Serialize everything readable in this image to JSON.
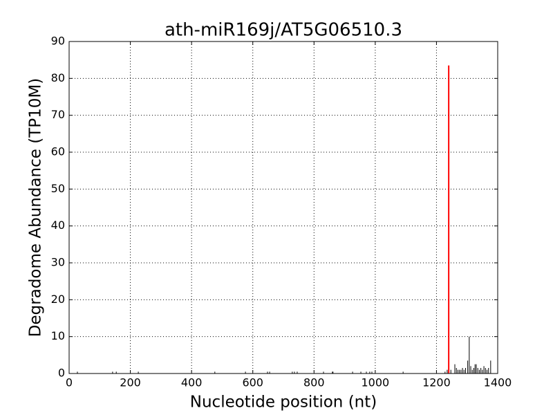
{
  "chart_data": {
    "type": "stem",
    "title": "ath-miR169j/AT5G06510.3",
    "x_label": "Nucleotide position (nt)",
    "y_label": "Degradome Abundance (TP10M)",
    "xlim": [
      0,
      1400
    ],
    "xticks": [
      0,
      200,
      400,
      600,
      800,
      1000,
      1200,
      1400
    ],
    "ylim": [
      0,
      90
    ],
    "yticks": [
      0,
      10,
      20,
      30,
      40,
      50,
      60,
      70,
      80,
      90
    ],
    "grid": true,
    "series": [
      {
        "color": "#000000",
        "x": [
          27,
          142,
          154,
          226,
          476,
          576,
          648,
          655,
          729,
          736,
          745,
          831,
          860,
          862,
          926,
          953,
          971,
          982,
          989,
          1091,
          1228,
          1235,
          1247,
          1260,
          1265,
          1270,
          1275,
          1280,
          1285,
          1290,
          1295,
          1302,
          1307,
          1312,
          1317,
          1322,
          1326,
          1330,
          1335,
          1340,
          1345,
          1350,
          1355,
          1360,
          1365,
          1370,
          1377
        ],
        "values": [
          0.5,
          0.5,
          0.5,
          0.5,
          0.5,
          0.5,
          0.5,
          0.5,
          0.5,
          0.5,
          0.5,
          0.5,
          0.5,
          0.5,
          0.5,
          0.5,
          0.5,
          0.5,
          0.5,
          0.5,
          0.5,
          1,
          1,
          2.5,
          1.5,
          1,
          1,
          1,
          1.5,
          1,
          1.5,
          3.5,
          10,
          2,
          1,
          1.5,
          2.5,
          2.5,
          1.5,
          1,
          1.5,
          1,
          2,
          1.5,
          1,
          1.5,
          3.5
        ]
      },
      {
        "color": "#ff0000",
        "x": [
          1240
        ],
        "values": [
          83.5
        ]
      }
    ]
  }
}
